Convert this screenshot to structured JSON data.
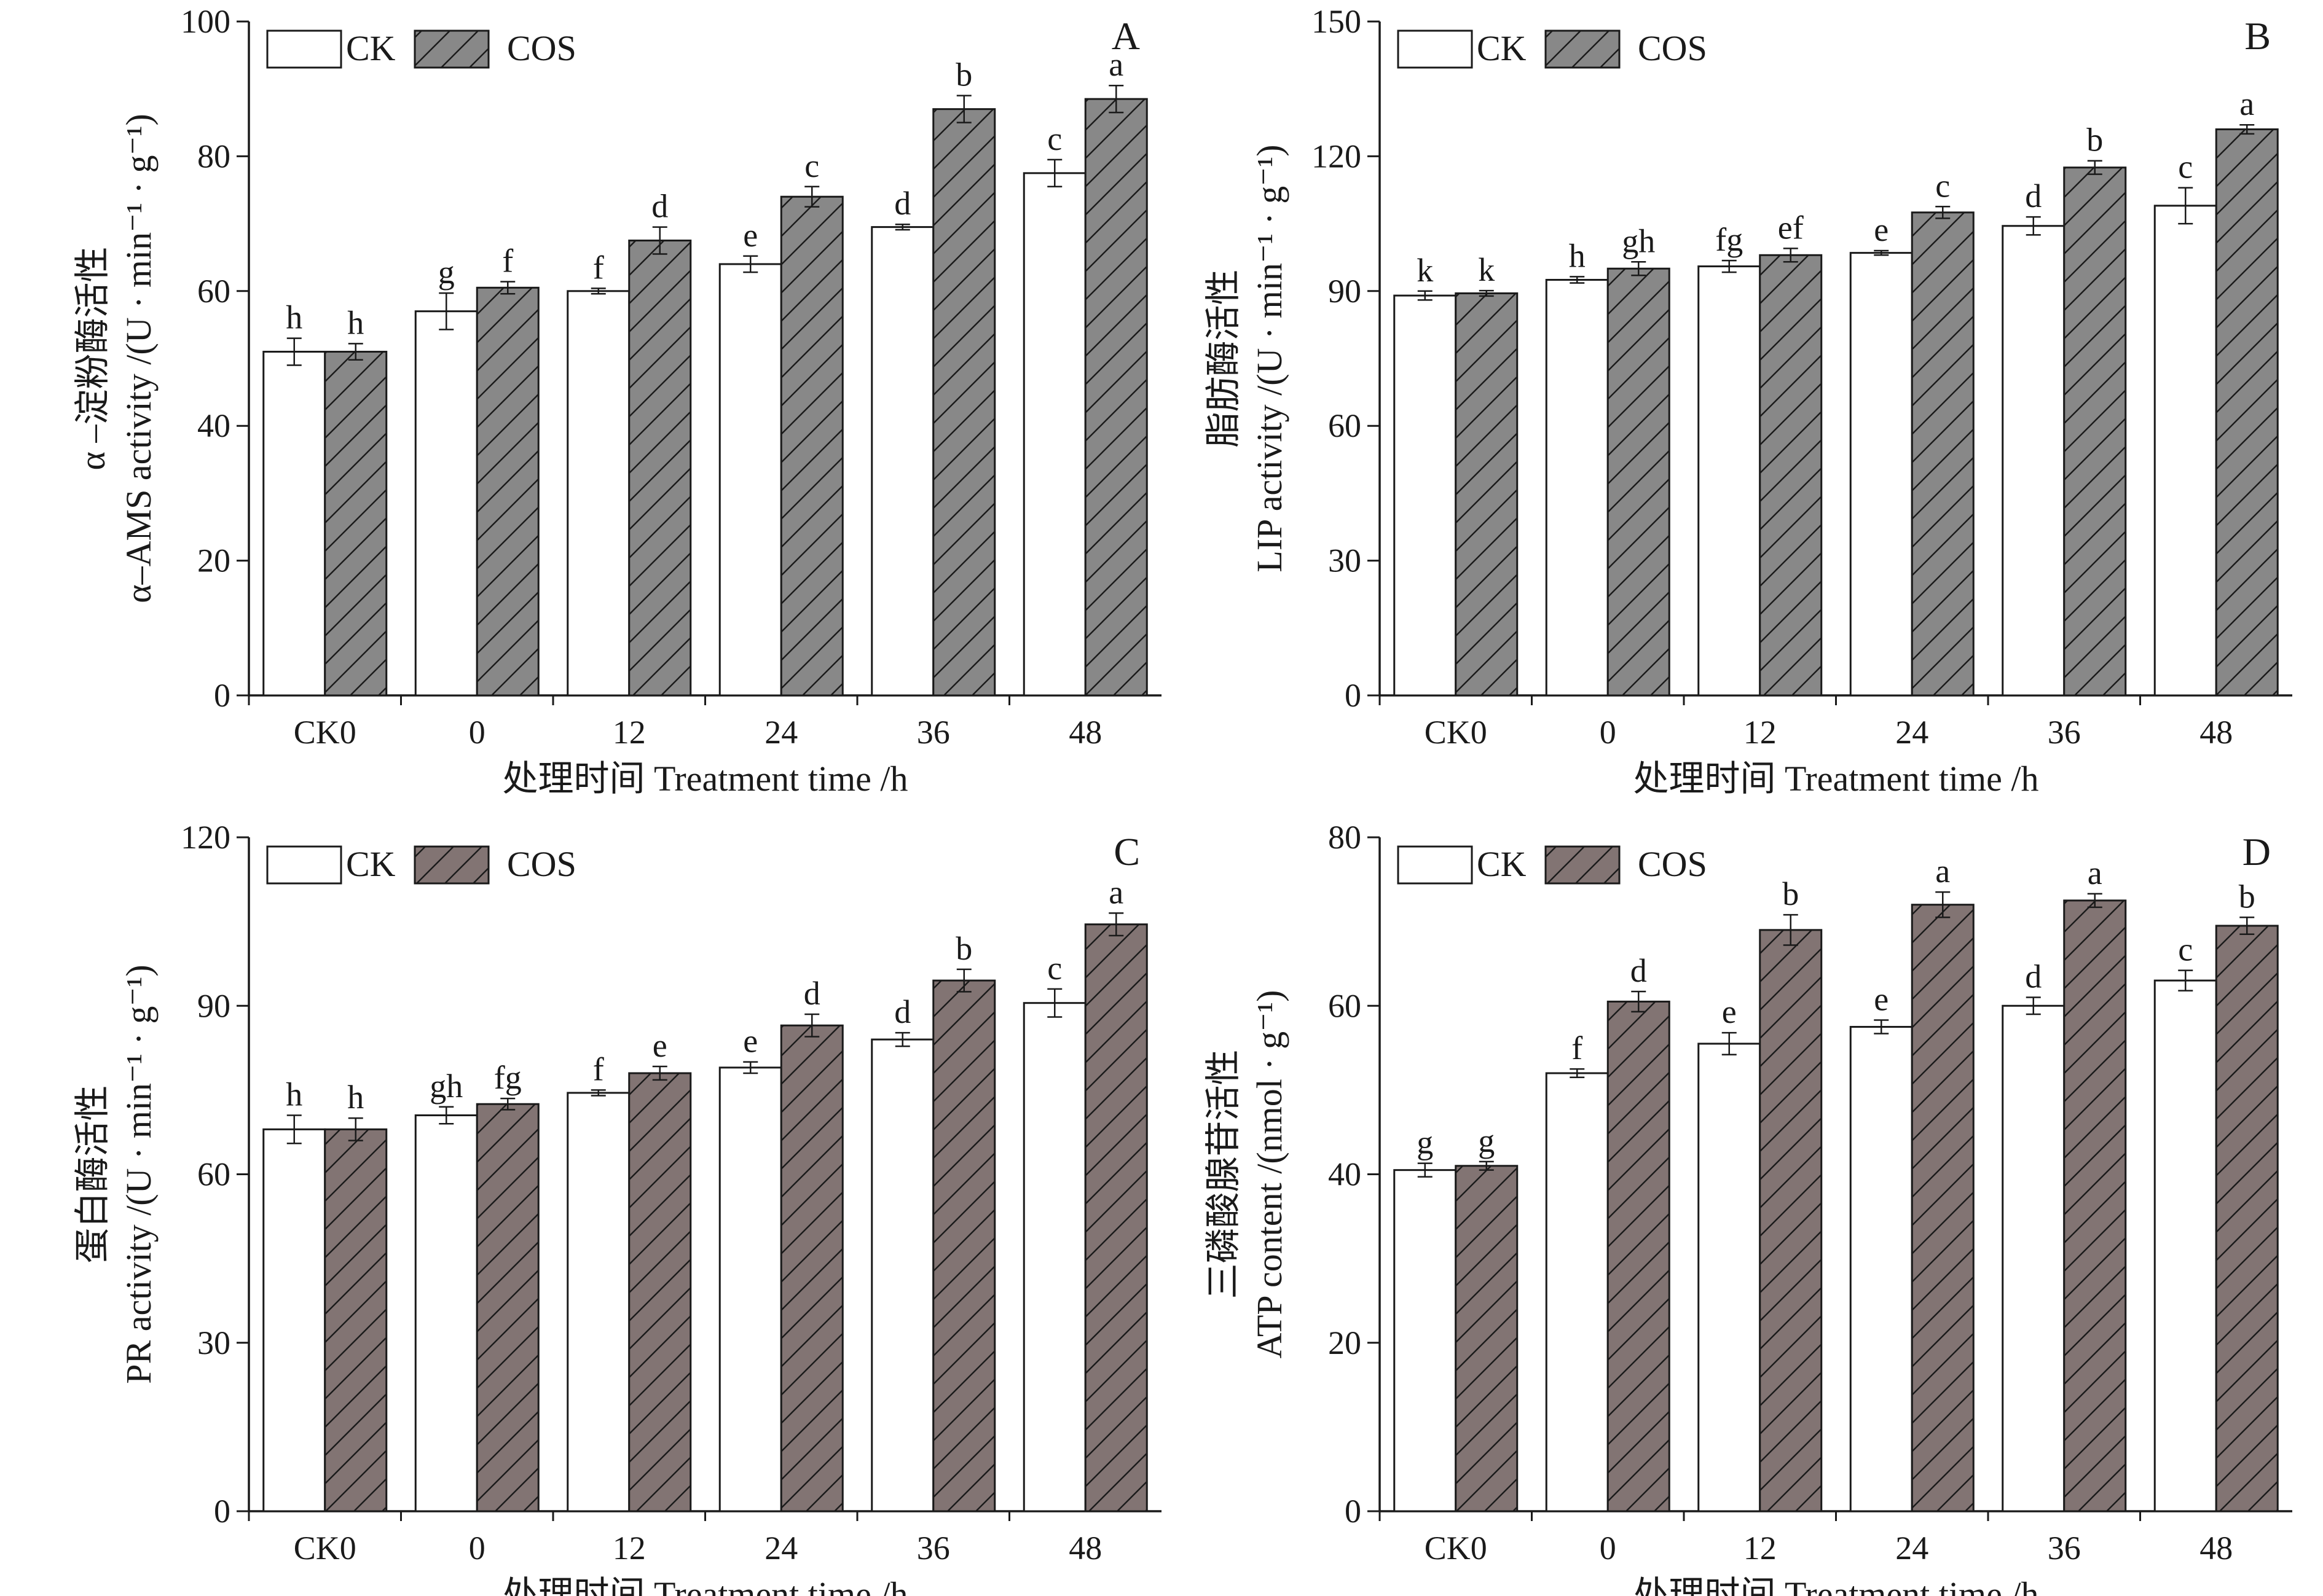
{
  "legend_labels": [
    "CK",
    "COS"
  ],
  "chart_data": [
    {
      "type": "bar",
      "panel_label": "A",
      "ylabel_cn": "α –淀粉酶活性",
      "ylabel_en": "α–AMS activity /(U · min⁻¹ · g⁻¹)",
      "xlabel": "处理时间 Treatment time /h",
      "categories": [
        "CK0",
        "0",
        "12",
        "24",
        "36",
        "48"
      ],
      "ylim": [
        0,
        100
      ],
      "yticks": [
        "0",
        "20",
        "40",
        "60",
        "80",
        "100"
      ],
      "grid": false,
      "legend": "top-left",
      "series": [
        {
          "name": "CK",
          "values": [
            51,
            57,
            60,
            64,
            69.5,
            77.5
          ],
          "errors": [
            2,
            2.7,
            0.4,
            1.2,
            0.4,
            2
          ],
          "labels": [
            "h",
            "g",
            "f",
            "e",
            "d",
            "c"
          ],
          "color": "#ffffff",
          "hatch": false
        },
        {
          "name": "COS",
          "values": [
            51,
            60.5,
            67.5,
            74,
            87,
            88.5
          ],
          "errors": [
            1.2,
            0.9,
            2,
            1.5,
            2,
            2
          ],
          "labels": [
            "h",
            "f",
            "d",
            "c",
            "b",
            "a"
          ],
          "color": "#888888",
          "hatch": true
        }
      ]
    },
    {
      "type": "bar",
      "panel_label": "B",
      "ylabel_cn": "脂肪酶活性",
      "ylabel_en": "LIP activity /(U · min⁻¹ · g⁻¹)",
      "xlabel": "处理时间 Treatment time /h",
      "categories": [
        "CK0",
        "0",
        "12",
        "24",
        "36",
        "48"
      ],
      "ylim": [
        0,
        150
      ],
      "yticks": [
        "0",
        "30",
        "60",
        "90",
        "120",
        "150"
      ],
      "grid": false,
      "legend": "top-left",
      "series": [
        {
          "name": "CK",
          "values": [
            89,
            92.5,
            95.5,
            98.5,
            104.5,
            109
          ],
          "errors": [
            1,
            0.7,
            1.3,
            0.5,
            2,
            4
          ],
          "labels": [
            "k",
            "h",
            "fg",
            "e",
            "d",
            "c"
          ],
          "color": "#ffffff",
          "hatch": false
        },
        {
          "name": "COS",
          "values": [
            89.5,
            95,
            98,
            107.5,
            117.5,
            126
          ],
          "errors": [
            0.6,
            1.5,
            1.5,
            1.3,
            1.5,
            1
          ],
          "labels": [
            "k",
            "gh",
            "ef",
            "c",
            "b",
            "a"
          ],
          "color": "#888888",
          "hatch": true
        }
      ]
    },
    {
      "type": "bar",
      "panel_label": "C",
      "ylabel_cn": "蛋白酶活性",
      "ylabel_en": "PR activity /(U · min⁻¹ · g⁻¹)",
      "xlabel": "处理时间 Treatment time /h",
      "categories": [
        "CK0",
        "0",
        "12",
        "24",
        "36",
        "48"
      ],
      "ylim": [
        0,
        120
      ],
      "yticks": [
        "0",
        "30",
        "60",
        "90",
        "120"
      ],
      "grid": false,
      "legend": "top-left",
      "series": [
        {
          "name": "CK",
          "values": [
            68,
            70.5,
            74.5,
            79,
            84,
            90.5
          ],
          "errors": [
            2.5,
            1.5,
            0.5,
            1,
            1.2,
            2.5
          ],
          "labels": [
            "h",
            "gh",
            "f",
            "e",
            "d",
            "c"
          ],
          "color": "#ffffff",
          "hatch": false
        },
        {
          "name": "COS",
          "values": [
            68,
            72.5,
            78,
            86.5,
            94.5,
            104.5
          ],
          "errors": [
            2,
            1,
            1.2,
            2,
            2,
            2
          ],
          "labels": [
            "h",
            "fg",
            "e",
            "d",
            "b",
            "a"
          ],
          "color": "#827473",
          "hatch": true
        }
      ]
    },
    {
      "type": "bar",
      "panel_label": "D",
      "ylabel_cn": "三磷酸腺苷活性",
      "ylabel_en": "ATP content /(nmol · g⁻¹)",
      "xlabel": "处理时间 Treatment time /h",
      "categories": [
        "CK0",
        "0",
        "12",
        "24",
        "36",
        "48"
      ],
      "ylim": [
        0,
        80
      ],
      "yticks": [
        "0",
        "20",
        "40",
        "60",
        "80"
      ],
      "grid": false,
      "legend": "top-left",
      "series": [
        {
          "name": "CK",
          "values": [
            40.5,
            52,
            55.5,
            57.5,
            60,
            63
          ],
          "errors": [
            0.8,
            0.5,
            1.3,
            0.8,
            1,
            1.2
          ],
          "labels": [
            "g",
            "f",
            "e",
            "e",
            "d",
            "c"
          ],
          "color": "#ffffff",
          "hatch": false
        },
        {
          "name": "COS",
          "values": [
            41,
            60.5,
            69,
            72,
            72.5,
            69.5
          ],
          "errors": [
            0.5,
            1.2,
            1.8,
            1.5,
            0.8,
            1
          ],
          "labels": [
            "g",
            "d",
            "b",
            "a",
            "a",
            "b"
          ],
          "color": "#827473",
          "hatch": true
        }
      ]
    }
  ]
}
